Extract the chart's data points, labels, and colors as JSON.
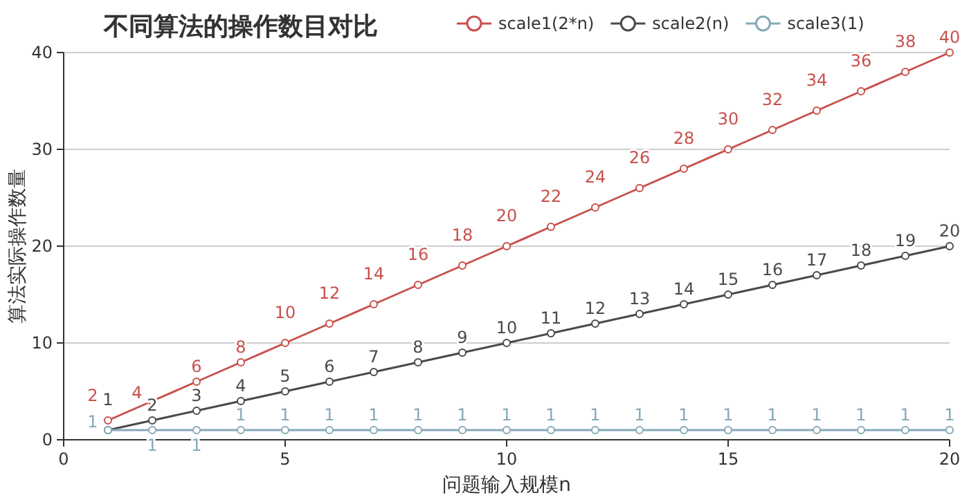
{
  "chart_data": {
    "type": "line",
    "title": "不同算法的操作数目对比",
    "xlabel": "问题输入规模n",
    "ylabel": "算法实际操作数量",
    "x": [
      1,
      2,
      3,
      4,
      5,
      6,
      7,
      8,
      9,
      10,
      11,
      12,
      13,
      14,
      15,
      16,
      17,
      18,
      19,
      20
    ],
    "series": [
      {
        "name": "scale1(2*n)",
        "color": "#c9504c",
        "values": [
          2,
          4,
          6,
          8,
          10,
          12,
          14,
          16,
          18,
          20,
          22,
          24,
          26,
          28,
          30,
          32,
          34,
          36,
          38,
          40
        ]
      },
      {
        "name": "scale2(n)",
        "color": "#4a4a4a",
        "values": [
          1,
          2,
          3,
          4,
          5,
          6,
          7,
          8,
          9,
          10,
          11,
          12,
          13,
          14,
          15,
          16,
          17,
          18,
          19,
          20
        ]
      },
      {
        "name": "scale3(1)",
        "color": "#86a9b8",
        "values": [
          1,
          1,
          1,
          1,
          1,
          1,
          1,
          1,
          1,
          1,
          1,
          1,
          1,
          1,
          1,
          1,
          1,
          1,
          1,
          1
        ]
      }
    ],
    "xlim": [
      0,
      20
    ],
    "xticks": [
      0,
      5,
      10,
      15,
      20
    ],
    "ylim": [
      0,
      40
    ],
    "yticks": [
      0,
      10,
      20,
      30,
      40
    ],
    "grid": "y",
    "legend": "top right",
    "marker": "circle",
    "line_style": "solid",
    "data_labels": true
  }
}
